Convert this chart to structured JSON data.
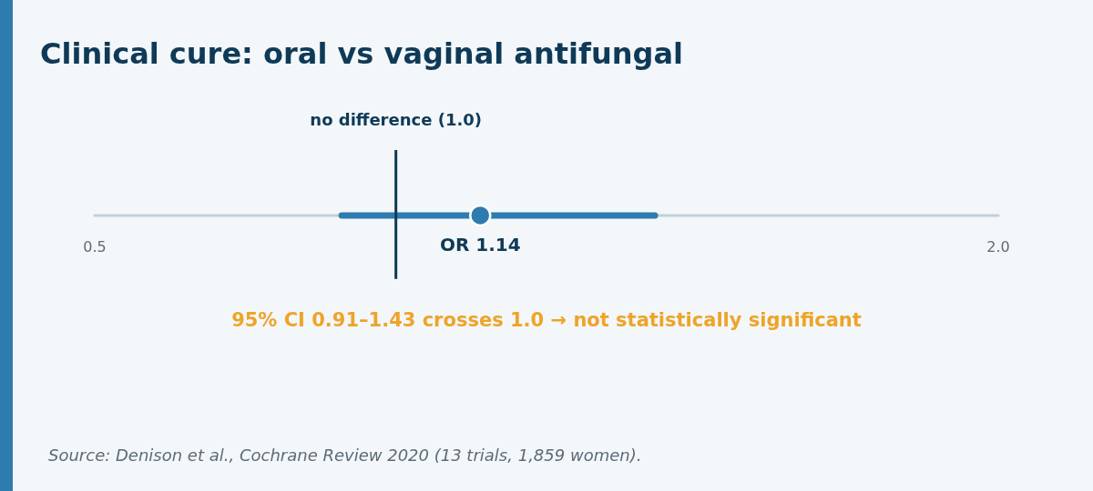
{
  "chart_data": {
    "type": "scatter",
    "title": "Clinical cure: oral vs vaginal antifungal",
    "orientation": "horizontal",
    "categories": [
      null
    ],
    "series": [
      {
        "color": "#2e7bb0",
        "values": [
          1.14
        ],
        "errors": [
          [
            0.91,
            1.43
          ]
        ],
        "value_labels": [
          "OR 1.14"
        ]
      }
    ],
    "xlim": [
      0.5,
      2.0
    ],
    "xticks": [
      0.5,
      {
        "value": 2.0,
        "label": "2.0"
      }
    ],
    "ref_lines": [
      {
        "axis": "x",
        "value": 1.0,
        "label": "no difference (1.0)",
        "color": "#0f3a57"
      }
    ],
    "annotations": [
      "95% CI 0.91–1.43 crosses 1.0 → not statistically significant",
      "Source: Denison et al., Cochrane Review 2020 (13 trials, 1,859 women)."
    ],
    "grid": false,
    "marker": "circle"
  }
}
